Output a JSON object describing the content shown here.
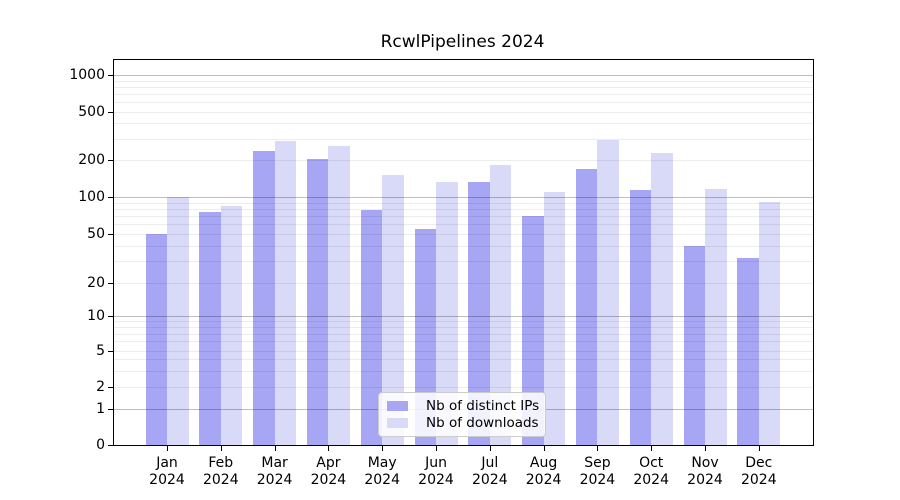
{
  "title": "RcwlPipelines 2024",
  "chart_data": {
    "type": "bar",
    "title": "RcwlPipelines 2024",
    "categories": [
      "Jan",
      "Feb",
      "Mar",
      "Apr",
      "May",
      "Jun",
      "Jul",
      "Aug",
      "Sep",
      "Oct",
      "Nov",
      "Dec"
    ],
    "year_label": "2024",
    "series": [
      {
        "name": "Nb of distinct IPs",
        "color": "#a6a6f4",
        "values": [
          50,
          75,
          237,
          204,
          78,
          55,
          133,
          70,
          168,
          115,
          40,
          32
        ]
      },
      {
        "name": "Nb of downloads",
        "color": "#d9d9f8",
        "values": [
          100,
          85,
          287,
          261,
          152,
          133,
          181,
          109,
          292,
          230,
          117,
          91
        ]
      }
    ],
    "yscale": "pseudo-log",
    "yticks": [
      0,
      1,
      2,
      5,
      10,
      20,
      50,
      100,
      200,
      500,
      1000
    ],
    "grid_major": [
      1,
      10,
      100,
      1000
    ],
    "grid_minor_decades": [
      1,
      10,
      100
    ],
    "grid_minor_multiples": [
      2,
      3,
      4,
      5,
      6,
      7,
      8,
      9
    ],
    "ylim": [
      0,
      1400
    ],
    "grid": "horizontal",
    "legend_position": "lower-center-inside"
  }
}
